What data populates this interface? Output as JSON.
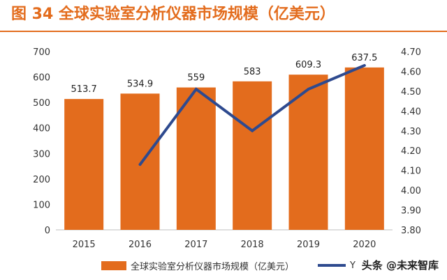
{
  "title": "图 34 全球实验室分析仪器市场规模（亿美元）",
  "watermark": "头条 @未来智库",
  "chart_data": {
    "type": "bar",
    "categories": [
      "2015",
      "2016",
      "2017",
      "2018",
      "2019",
      "2020"
    ],
    "series": [
      {
        "name": "全球实验室分析仪器市场规模（亿美元）",
        "type": "bar",
        "axis": "left",
        "values": [
          513.7,
          534.9,
          559,
          583,
          609.3,
          637.5
        ],
        "color": "#e36c1d"
      },
      {
        "name": "Y",
        "type": "line",
        "axis": "right",
        "values": [
          null,
          4.13,
          4.51,
          4.3,
          4.51,
          4.63
        ],
        "color": "#2e4a8f"
      }
    ],
    "data_labels": [
      "513.7",
      "534.9",
      "559",
      "583",
      "609.3",
      "637.5"
    ],
    "y_left": {
      "min": 0,
      "max": 700,
      "ticks": [
        "0",
        "100",
        "200",
        "300",
        "400",
        "500",
        "600",
        "700"
      ]
    },
    "y_right": {
      "min": 3.8,
      "max": 4.7,
      "ticks": [
        "3.80",
        "3.90",
        "4.00",
        "4.10",
        "4.20",
        "4.30",
        "4.40",
        "4.50",
        "4.60",
        "4.70"
      ]
    },
    "grid": false,
    "legend_position": "bottom"
  }
}
